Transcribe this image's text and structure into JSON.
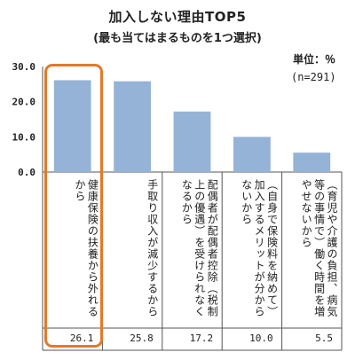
{
  "header": {
    "title": "加入しない理由TOP5",
    "subtitle": "(最も当てはまるものを1つ選択)",
    "unit": "単位：％",
    "sample": "(n=291)"
  },
  "chart_data": {
    "type": "bar",
    "title": "加入しない理由TOP5",
    "subtitle": "(最も当てはまるものを1つ選択)",
    "categories": [
      "健康保険の扶養から外れるから",
      "手取り収入が減少するから",
      "配偶者が配偶者控除（税制上の優遇）を受けられなくなるから",
      "（自身で保険料を納めて）加入するメリットが分からないから",
      "（育児や介護の負担、病気等の事情で）働く時間を増やせないから"
    ],
    "values": [
      26.1,
      25.8,
      17.2,
      10.0,
      5.5
    ],
    "value_labels": [
      "26.1",
      "25.8",
      "17.2",
      "10.0",
      "5.5"
    ],
    "yticks": [
      "0.0",
      "10.0",
      "20.0",
      "30.0"
    ],
    "ylim": [
      0,
      30
    ],
    "unit": "％",
    "n": "n=291",
    "bar_color": "#95b3d7",
    "highlight_color": "#e07a2b",
    "highlight_index": 0
  }
}
